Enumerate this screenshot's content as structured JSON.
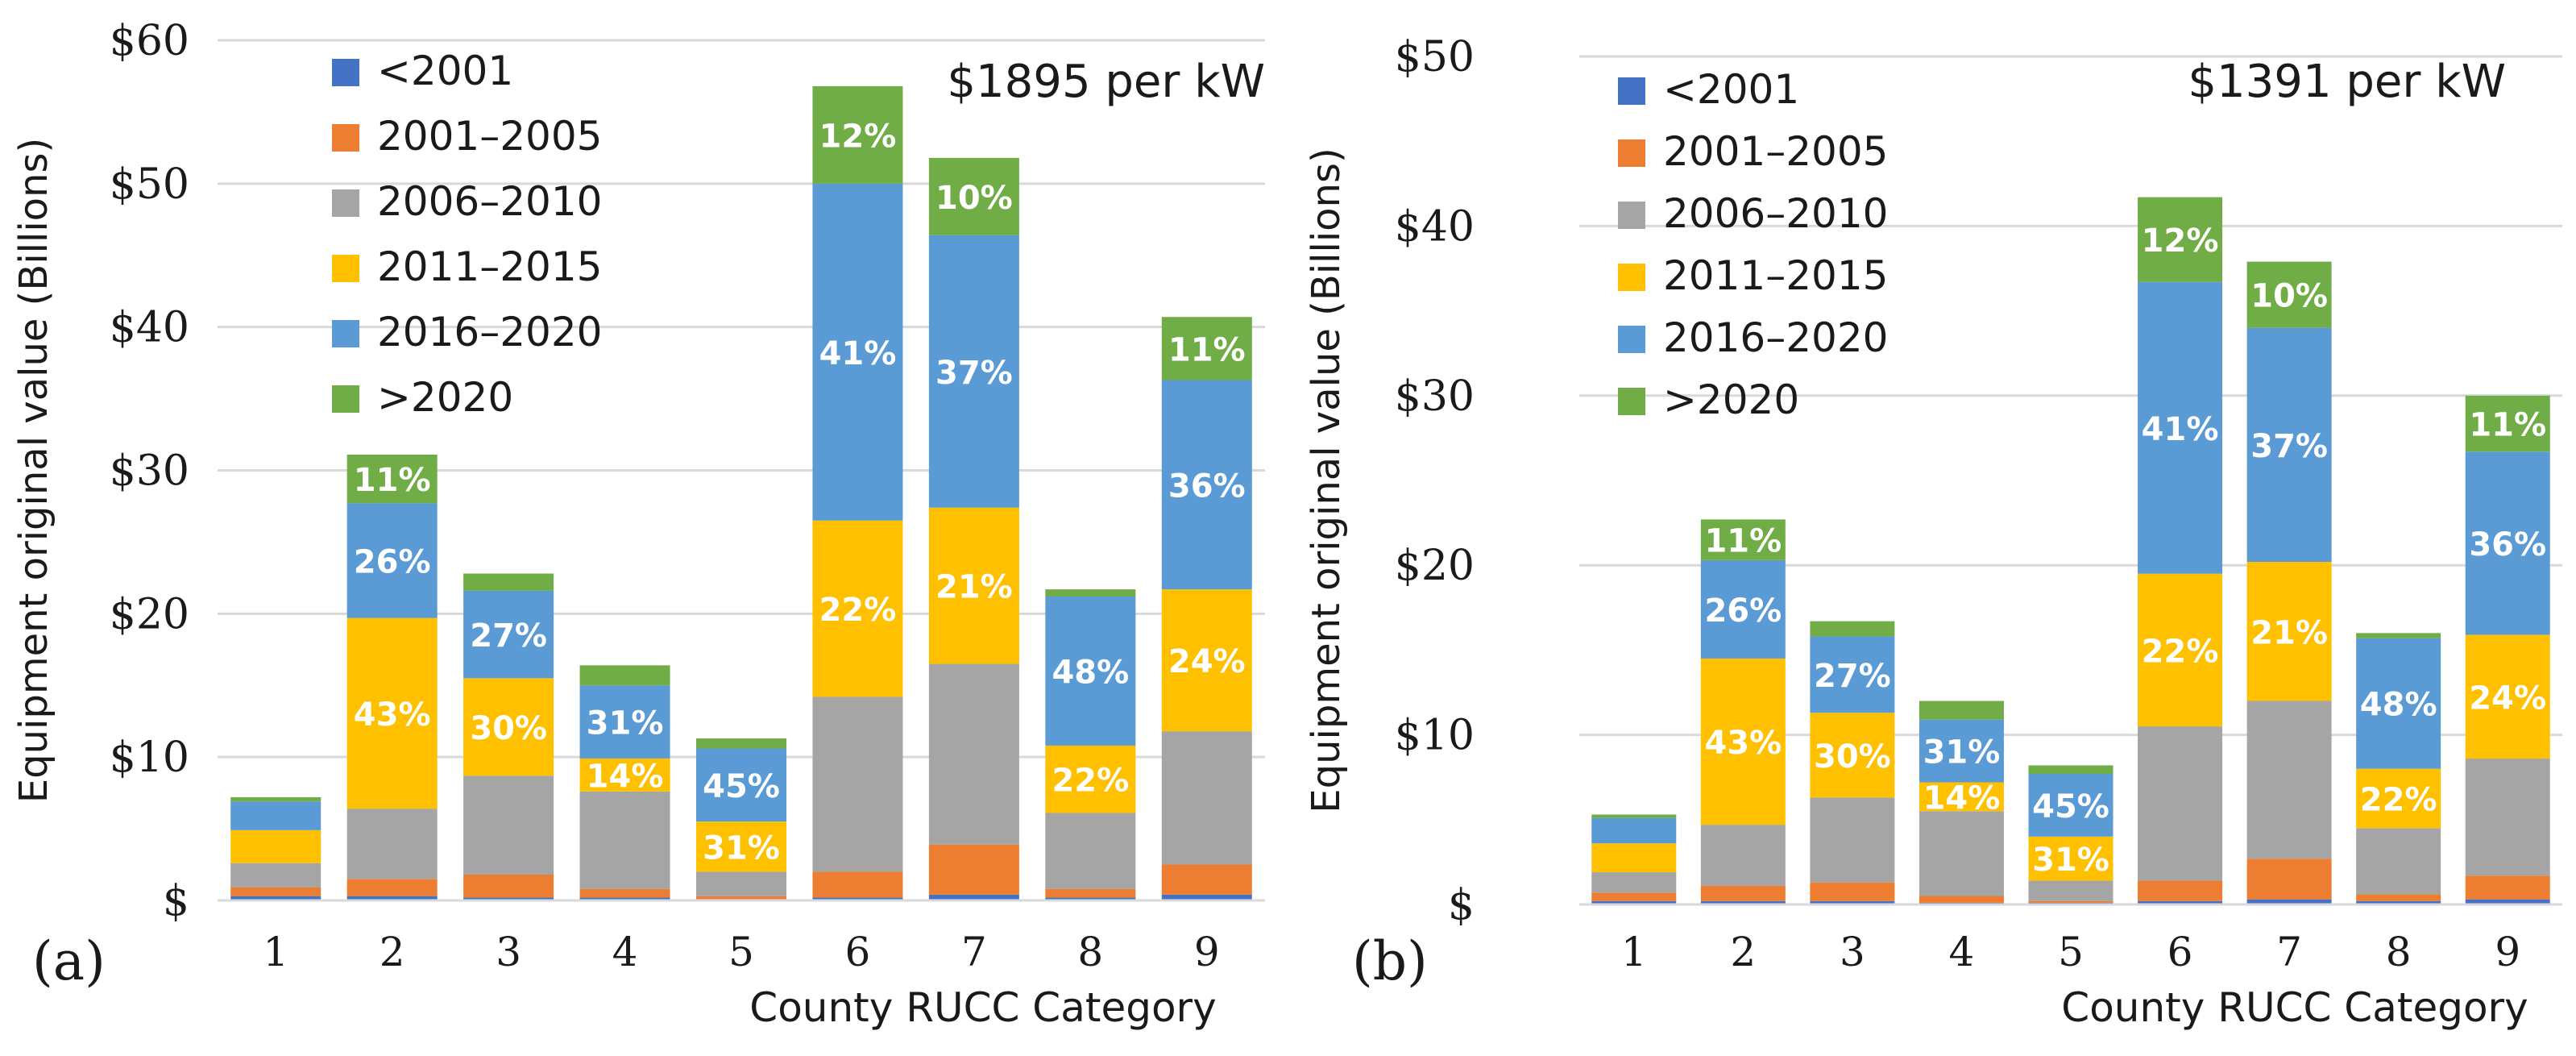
{
  "colors": {
    "<2001": "#4472C4",
    "2001–2005": "#ED7D31",
    "2006–2010": "#A5A5A5",
    "2011–2015": "#FFC000",
    "2016–2020": "#5B9BD5",
    ">2020": "#70AD47"
  },
  "chart_data": [
    {
      "type": "bar",
      "stacked": true,
      "panel_label": "(a)",
      "annotation": "$1895 per kW",
      "ylabel": "Equipment original value (Billions)",
      "xlabel": "County RUCC Category",
      "ylim": [
        0,
        60
      ],
      "yticks": [
        0,
        10,
        20,
        30,
        40,
        50,
        60
      ],
      "ytick_labels": [
        "$",
        "$10",
        "$20",
        "$30",
        "$40",
        "$50",
        "$60"
      ],
      "categories": [
        "1",
        "2",
        "3",
        "4",
        "5",
        "6",
        "7",
        "8",
        "9"
      ],
      "legend": [
        "<2001",
        "2001–2005",
        "2006–2010",
        "2011–2015",
        "2016–2020",
        ">2020"
      ],
      "legend_position": "top-left",
      "series": [
        {
          "name": "<2001",
          "values": [
            0.3,
            0.3,
            0.2,
            0.2,
            0.1,
            0.2,
            0.4,
            0.2,
            0.4
          ]
        },
        {
          "name": "2001–2005",
          "values": [
            0.6,
            1.2,
            1.6,
            0.6,
            0.2,
            1.8,
            3.5,
            0.6,
            2.1
          ]
        },
        {
          "name": "2006–2010",
          "values": [
            1.7,
            4.9,
            6.9,
            6.8,
            1.7,
            12.2,
            12.6,
            5.3,
            9.3
          ]
        },
        {
          "name": "2011–2015",
          "values": [
            2.3,
            13.3,
            6.8,
            2.3,
            3.5,
            12.3,
            10.9,
            4.7,
            9.9
          ]
        },
        {
          "name": "2016–2020",
          "values": [
            2.0,
            8.0,
            6.1,
            5.1,
            5.1,
            23.5,
            19.0,
            10.4,
            14.6
          ]
        },
        {
          "name": ">2020",
          "values": [
            0.3,
            3.4,
            1.2,
            1.4,
            0.7,
            6.8,
            5.4,
            0.5,
            4.4
          ]
        }
      ],
      "data_labels": [
        [
          1,
          "2011–2015",
          "43%"
        ],
        [
          1,
          "2016–2020",
          "26%"
        ],
        [
          1,
          ">2020",
          "11%"
        ],
        [
          2,
          "2011–2015",
          "30%"
        ],
        [
          2,
          "2016–2020",
          "27%"
        ],
        [
          3,
          "2011–2015",
          "14%"
        ],
        [
          3,
          "2016–2020",
          "31%"
        ],
        [
          4,
          "2011–2015",
          "31%"
        ],
        [
          4,
          "2016–2020",
          "45%"
        ],
        [
          5,
          "2011–2015",
          "22%"
        ],
        [
          5,
          "2016–2020",
          "41%"
        ],
        [
          5,
          ">2020",
          "12%"
        ],
        [
          6,
          "2011–2015",
          "21%"
        ],
        [
          6,
          "2016–2020",
          "37%"
        ],
        [
          6,
          ">2020",
          "10%"
        ],
        [
          7,
          "2011–2015",
          "22%"
        ],
        [
          7,
          "2016–2020",
          "48%"
        ],
        [
          8,
          "2011–2015",
          "24%"
        ],
        [
          8,
          "2016–2020",
          "36%"
        ],
        [
          8,
          ">2020",
          "11%"
        ]
      ]
    },
    {
      "type": "bar",
      "stacked": true,
      "panel_label": "(b)",
      "annotation": "$1391 per kW",
      "ylabel": "Equipment original value (Billions)",
      "xlabel": "County RUCC Category",
      "ylim": [
        0,
        50
      ],
      "yticks": [
        0,
        10,
        20,
        30,
        40,
        50
      ],
      "ytick_labels": [
        "$",
        "$10",
        "$20",
        "$30",
        "$40",
        "$50"
      ],
      "categories": [
        "1",
        "2",
        "3",
        "4",
        "5",
        "6",
        "7",
        "8",
        "9"
      ],
      "legend": [
        "<2001",
        "2001–2005",
        "2006–2010",
        "2011–2015",
        "2016–2020",
        ">2020"
      ],
      "legend_position": "top-left",
      "series": [
        {
          "name": "<2001",
          "values": [
            0.2,
            0.2,
            0.2,
            0.1,
            0.1,
            0.2,
            0.3,
            0.2,
            0.3
          ]
        },
        {
          "name": "2001–2005",
          "values": [
            0.5,
            0.9,
            1.1,
            0.4,
            0.1,
            1.2,
            2.4,
            0.4,
            1.4
          ]
        },
        {
          "name": "2006–2010",
          "values": [
            1.2,
            3.6,
            5.0,
            5.0,
            1.2,
            9.1,
            9.3,
            3.9,
            6.9
          ]
        },
        {
          "name": "2011–2015",
          "values": [
            1.7,
            9.8,
            5.0,
            1.7,
            2.6,
            9.0,
            8.2,
            3.5,
            7.3
          ]
        },
        {
          "name": "2016–2020",
          "values": [
            1.5,
            5.8,
            4.5,
            3.7,
            3.7,
            17.2,
            13.8,
            7.7,
            10.8
          ]
        },
        {
          "name": ">2020",
          "values": [
            0.2,
            2.4,
            0.9,
            1.1,
            0.5,
            5.0,
            3.9,
            0.3,
            3.3
          ]
        }
      ],
      "data_labels": [
        [
          1,
          "2011–2015",
          "43%"
        ],
        [
          1,
          "2016–2020",
          "26%"
        ],
        [
          1,
          ">2020",
          "11%"
        ],
        [
          2,
          "2011–2015",
          "30%"
        ],
        [
          2,
          "2016–2020",
          "27%"
        ],
        [
          3,
          "2011–2015",
          "14%"
        ],
        [
          3,
          "2016–2020",
          "31%"
        ],
        [
          4,
          "2011–2015",
          "31%"
        ],
        [
          4,
          "2016–2020",
          "45%"
        ],
        [
          5,
          "2011–2015",
          "22%"
        ],
        [
          5,
          "2016–2020",
          "41%"
        ],
        [
          5,
          ">2020",
          "12%"
        ],
        [
          6,
          "2011–2015",
          "21%"
        ],
        [
          6,
          "2016–2020",
          "37%"
        ],
        [
          6,
          ">2020",
          "10%"
        ],
        [
          7,
          "2011–2015",
          "22%"
        ],
        [
          7,
          "2016–2020",
          "48%"
        ],
        [
          8,
          "2011–2015",
          "24%"
        ],
        [
          8,
          "2016–2020",
          "36%"
        ],
        [
          8,
          ">2020",
          "11%"
        ]
      ]
    }
  ]
}
